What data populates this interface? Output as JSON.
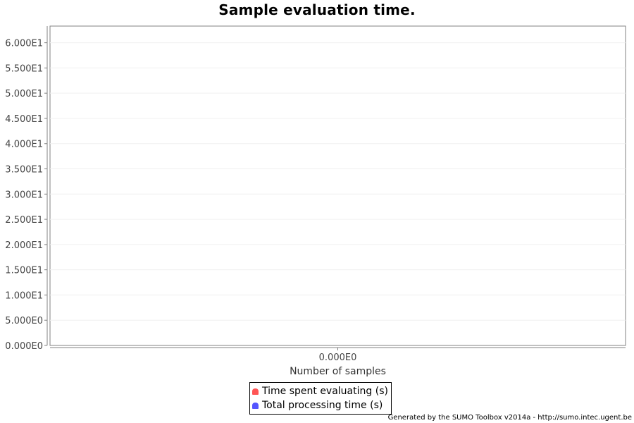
{
  "chart_data": {
    "type": "line",
    "title": "Sample evaluation time.",
    "xlabel": "Number of samples",
    "ylabel": "",
    "x_ticks": [
      "0.000E0"
    ],
    "y_ticks": [
      "0.000E0",
      "5.000E0",
      "1.000E1",
      "1.500E1",
      "2.000E1",
      "2.500E1",
      "3.000E1",
      "3.500E1",
      "4.000E1",
      "4.500E1",
      "5.000E1",
      "5.500E1",
      "6.000E1"
    ],
    "y_tick_values": [
      0,
      5,
      10,
      15,
      20,
      25,
      30,
      35,
      40,
      45,
      50,
      55,
      60
    ],
    "ylim": [
      0,
      63.3
    ],
    "grid": true,
    "legend_position": "bottom",
    "series": [
      {
        "name": "Time spent evaluating (s)",
        "color": "#ff5555",
        "values": []
      },
      {
        "name": "Total processing time (s)",
        "color": "#5555ff",
        "values": []
      }
    ]
  },
  "footer": "Generated by the SUMO Toolbox v2014a - http://sumo.intec.ugent.be"
}
